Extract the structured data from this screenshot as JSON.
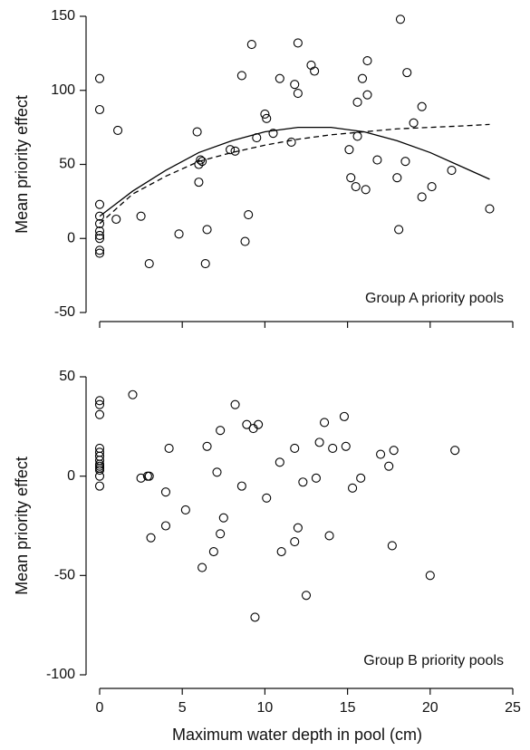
{
  "chart_data": [
    {
      "type": "scatter",
      "ylabel": "Mean priority effect",
      "annotation": "Group A priority pools",
      "xlim": [
        0,
        25
      ],
      "xticks": [
        0,
        5,
        10,
        15,
        20,
        25
      ],
      "xtick_labels": false,
      "ylim": [
        -50,
        150
      ],
      "yticks": [
        -50,
        0,
        50,
        100,
        150
      ],
      "series": [
        {
          "mode": "markers",
          "color": "#000000",
          "x": [
            0,
            0,
            0,
            0,
            0,
            0,
            0,
            0,
            0,
            0,
            1.0,
            1.1,
            2.5,
            3.0,
            4.8,
            5.9,
            6.0,
            6.0,
            6.1,
            6.2,
            6.5,
            6.4,
            7.9,
            8.2,
            8.6,
            8.8,
            9.0,
            9.2,
            9.5,
            10.0,
            10.1,
            10.5,
            10.9,
            11.6,
            11.8,
            12.0,
            12.0,
            12.8,
            13.0,
            15.1,
            15.2,
            15.5,
            15.6,
            15.6,
            15.9,
            16.2,
            16.1,
            16.2,
            16.8,
            18.0,
            18.1,
            18.2,
            18.5,
            18.6,
            19.0,
            19.5,
            19.5,
            20.1,
            21.3,
            23.6
          ],
          "values": [
            108,
            87,
            23,
            15,
            10,
            5,
            2,
            0,
            -8,
            -10,
            13,
            73,
            15,
            -17,
            3,
            72,
            38,
            50,
            53,
            52,
            6,
            -17,
            60,
            59,
            110,
            -2,
            16,
            131,
            68,
            84,
            81,
            71,
            108,
            65,
            104,
            98,
            132,
            117,
            113,
            60,
            41,
            35,
            69,
            92,
            108,
            120,
            33,
            97,
            53,
            41,
            6,
            148,
            52,
            112,
            78,
            89,
            28,
            35,
            46,
            20
          ]
        },
        {
          "mode": "line",
          "dash": false,
          "color": "#000000",
          "x": [
            0,
            2,
            4,
            6,
            8,
            10,
            12,
            14,
            16,
            18,
            20,
            22,
            23.6
          ],
          "values": [
            15,
            32,
            46,
            58,
            66,
            72,
            75,
            75,
            72,
            66,
            58,
            48,
            40
          ]
        },
        {
          "mode": "line",
          "dash": true,
          "color": "#000000",
          "x": [
            0,
            2,
            4,
            6,
            8,
            10,
            12,
            14,
            16,
            18,
            20,
            22,
            23.6
          ],
          "values": [
            10,
            30,
            42,
            52,
            58,
            63,
            67,
            70,
            72,
            74,
            75,
            76,
            77
          ]
        }
      ]
    },
    {
      "type": "scatter",
      "ylabel": "Mean priority effect",
      "annotation": "Group B priority pools",
      "xlabel": "Maximum water depth in pool (cm)",
      "xlim": [
        0,
        25
      ],
      "xticks": [
        0,
        5,
        10,
        15,
        20,
        25
      ],
      "xtick_labels": true,
      "ylim": [
        -100,
        50
      ],
      "yticks": [
        -100,
        -50,
        0,
        50
      ],
      "series": [
        {
          "mode": "markers",
          "color": "#000000",
          "x": [
            0,
            0,
            0,
            0,
            0,
            0,
            0,
            0,
            0,
            0,
            0,
            0,
            0,
            2.0,
            2.5,
            2.9,
            3.0,
            3.1,
            4.0,
            4.0,
            4.2,
            5.2,
            6.2,
            6.5,
            6.9,
            7.1,
            7.3,
            7.3,
            7.5,
            8.2,
            8.6,
            8.9,
            9.3,
            9.4,
            9.6,
            10.1,
            10.9,
            11.0,
            11.8,
            11.8,
            12.0,
            12.3,
            12.5,
            13.1,
            13.3,
            13.6,
            13.9,
            14.1,
            14.8,
            14.9,
            15.3,
            15.8,
            17.0,
            17.5,
            17.7,
            17.8,
            20.0,
            21.5
          ],
          "values": [
            38,
            36,
            31,
            14,
            12,
            10,
            8,
            6,
            5,
            4,
            3,
            0,
            -5,
            41,
            -1,
            0,
            0,
            -31,
            -8,
            -25,
            14,
            -17,
            -46,
            15,
            -38,
            2,
            23,
            -29,
            -21,
            36,
            -5,
            26,
            24,
            -71,
            26,
            -11,
            7,
            -38,
            14,
            -33,
            -26,
            -3,
            -60,
            -1,
            17,
            27,
            -30,
            14,
            30,
            15,
            -6,
            -1,
            11,
            5,
            -35,
            13,
            -50,
            13
          ]
        }
      ]
    }
  ]
}
